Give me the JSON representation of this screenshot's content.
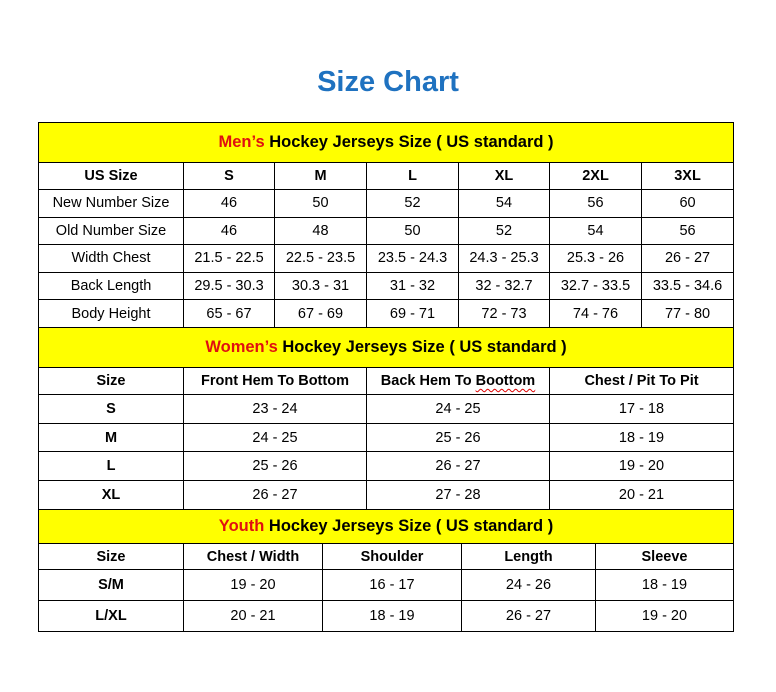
{
  "title": "Size Chart",
  "colors": {
    "title": "#1f72c0",
    "banner": "#ffff00",
    "highlight": "#e01010"
  },
  "men": {
    "banner_highlight": "Men’s",
    "banner_rest": " Hockey Jerseys Size ( US standard )",
    "header": [
      "US Size",
      "S",
      "M",
      "L",
      "XL",
      "2XL",
      "3XL"
    ],
    "rows": [
      [
        "New Number Size",
        "46",
        "50",
        "52",
        "54",
        "56",
        "60"
      ],
      [
        "Old Number Size",
        "46",
        "48",
        "50",
        "52",
        "54",
        "56"
      ],
      [
        "Width Chest",
        "21.5 - 22.5",
        "22.5 - 23.5",
        "23.5 - 24.3",
        "24.3 - 25.3",
        "25.3 - 26",
        "26 - 27"
      ],
      [
        "Back Length",
        "29.5 - 30.3",
        "30.3 - 31",
        "31 - 32",
        "32 - 32.7",
        "32.7 - 33.5",
        "33.5 - 34.6"
      ],
      [
        "Body Height",
        "65 - 67",
        "67 - 69",
        "69 - 71",
        "72 - 73",
        "74 - 76",
        "77 - 80"
      ]
    ]
  },
  "women": {
    "banner_highlight": "Women’s",
    "banner_rest": " Hockey Jerseys Size ( US standard )",
    "header": [
      "Size",
      "Front Hem To Bottom",
      "Back Hem To Boottom",
      "Chest / Pit To Pit"
    ],
    "rows": [
      [
        "S",
        "23 - 24",
        "24 - 25",
        "17 - 18"
      ],
      [
        "M",
        "24 - 25",
        "25 - 26",
        "18 - 19"
      ],
      [
        "L",
        "25 - 26",
        "26 - 27",
        "19 - 20"
      ],
      [
        "XL",
        "26 - 27",
        "27 - 28",
        "20 - 21"
      ]
    ]
  },
  "youth": {
    "banner_highlight": "Youth",
    "banner_rest": " Hockey Jerseys Size ( US standard )",
    "header": [
      "Size",
      "Chest / Width",
      "Shoulder",
      "Length",
      "Sleeve"
    ],
    "rows": [
      [
        "S/M",
        "19 - 20",
        "16 - 17",
        "24 - 26",
        "18 - 19"
      ],
      [
        "L/XL",
        "20 - 21",
        "18 - 19",
        "26 - 27",
        "19 - 20"
      ]
    ]
  }
}
